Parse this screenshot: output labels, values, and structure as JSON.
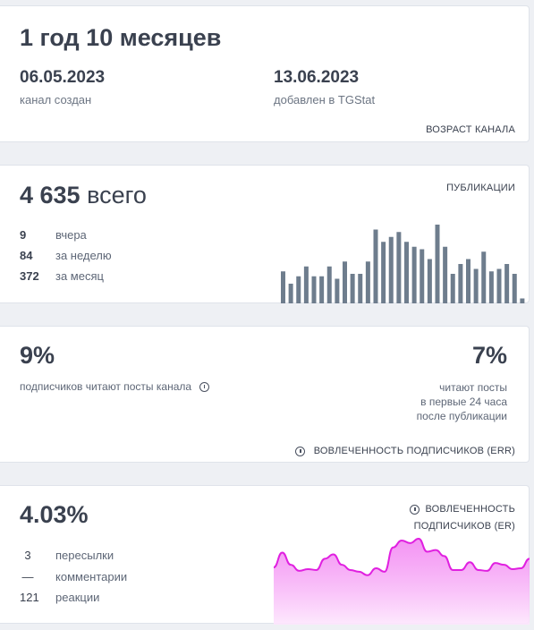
{
  "age_card": {
    "headline": "1 год 10 месяцев",
    "created_date": "06.05.2023",
    "created_label": "канал создан",
    "added_date": "13.06.2023",
    "added_label": "добавлен в TGStat",
    "footer": "ВОЗРАСТ КАНАЛА"
  },
  "posts_card": {
    "total": "4 635",
    "total_suffix": "всего",
    "title": "ПУБЛИКАЦИИ",
    "rows": [
      {
        "value": "9",
        "label": "вчера"
      },
      {
        "value": "84",
        "label": "за неделю"
      },
      {
        "value": "372",
        "label": "за месяц"
      }
    ],
    "bar_color": "#6e7d8d",
    "chart_data": {
      "type": "bar",
      "values": [
        13,
        8,
        11,
        15,
        11,
        11,
        15,
        10,
        17,
        12,
        12,
        17,
        30,
        25,
        27,
        29,
        25,
        23,
        22,
        18,
        32,
        23,
        12,
        16,
        18,
        14,
        21,
        13,
        14,
        16,
        12,
        2
      ]
    }
  },
  "err_card": {
    "left_value": "9%",
    "left_label": "подписчиков читают посты канала",
    "right_value": "7%",
    "right_label_lines": [
      "читают посты",
      "в первые 24 часа",
      "после публикации"
    ],
    "footer": "ВОВЛЕЧЕННОСТЬ ПОДПИСЧИКОВ (ERR)"
  },
  "er_card": {
    "value": "4.03%",
    "title_lines": [
      "ВОВЛЕЧЕННОСТЬ",
      "ПОДПИСЧИКОВ (ER)"
    ],
    "rows": [
      {
        "value": "3",
        "label": "пересылки"
      },
      {
        "value": "—",
        "label": "комментарии"
      },
      {
        "value": "121",
        "label": "реакции"
      }
    ],
    "line_color": "#e020e0",
    "chart_data": {
      "type": "area",
      "values": [
        3.5,
        5.2,
        3.8,
        3.1,
        3.3,
        3.2,
        4.5,
        5.0,
        3.8,
        3.2,
        3.0,
        2.6,
        3.4,
        3.0,
        5.8,
        6.6,
        6.3,
        6.8,
        5.3,
        5.5,
        4.8,
        3.2,
        3.2,
        4.1,
        3.2,
        3.1,
        4.0,
        3.8,
        3.3,
        3.4,
        4.5
      ]
    }
  }
}
